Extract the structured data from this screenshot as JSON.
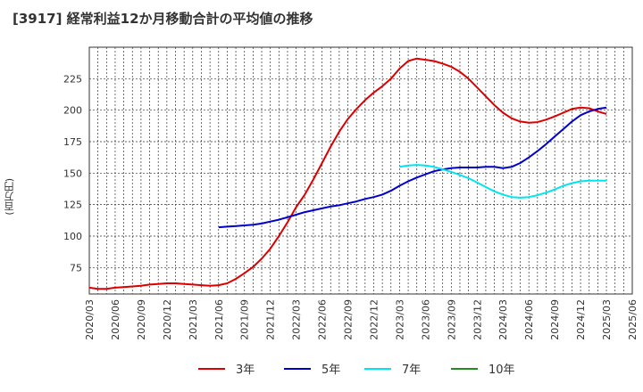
{
  "chart_data": {
    "type": "line",
    "title": "[3917]  経常利益12か月移動合計の平均値の推移",
    "ylabel": "(百万円)",
    "xlabel": "",
    "ylim": [
      54,
      250
    ],
    "yticks": [
      75,
      100,
      125,
      150,
      175,
      200,
      225
    ],
    "x_ticks": [
      "2020/03",
      "2020/06",
      "2020/09",
      "2020/12",
      "2021/03",
      "2021/06",
      "2021/09",
      "2021/12",
      "2022/03",
      "2022/06",
      "2022/09",
      "2022/12",
      "2023/03",
      "2023/06",
      "2023/09",
      "2023/12",
      "2024/03",
      "2024/06",
      "2024/09",
      "2024/12",
      "2025/03",
      "2025/06"
    ],
    "grid": true,
    "legend_position": "bottom",
    "series": [
      {
        "name": "3年",
        "color": "#dd0000",
        "x": [
          "2020/03",
          "2020/04",
          "2020/05",
          "2020/06",
          "2020/07",
          "2020/08",
          "2020/09",
          "2020/10",
          "2020/11",
          "2020/12",
          "2021/01",
          "2021/02",
          "2021/03",
          "2021/04",
          "2021/05",
          "2021/06",
          "2021/07",
          "2021/08",
          "2021/09",
          "2021/10",
          "2021/11",
          "2021/12",
          "2022/01",
          "2022/02",
          "2022/03",
          "2022/04",
          "2022/05",
          "2022/06",
          "2022/07",
          "2022/08",
          "2022/09",
          "2022/10",
          "2022/11",
          "2022/12",
          "2023/01",
          "2023/02",
          "2023/03",
          "2023/04",
          "2023/05",
          "2023/06",
          "2023/07",
          "2023/08",
          "2023/09",
          "2023/10",
          "2023/11",
          "2023/12",
          "2024/01",
          "2024/02",
          "2024/03",
          "2024/04",
          "2024/05",
          "2024/06",
          "2024/07",
          "2024/08",
          "2024/09",
          "2024/10",
          "2024/11",
          "2024/12",
          "2025/01",
          "2025/02",
          "2025/03"
        ],
        "values": [
          59,
          58,
          58,
          59,
          59.5,
          60,
          60.5,
          61.5,
          62,
          62.5,
          62.5,
          62,
          61.5,
          61,
          60.5,
          61,
          62.5,
          66,
          70.5,
          75.5,
          82,
          90,
          100,
          111,
          123,
          133,
          145,
          158,
          171,
          183,
          193,
          201,
          208,
          214,
          219,
          225,
          233,
          239,
          241,
          240,
          239,
          237,
          234.5,
          230.5,
          225,
          218,
          211,
          204,
          198,
          193.5,
          191,
          190,
          190.5,
          192.5,
          195,
          198,
          201,
          202,
          201.5,
          199,
          197
        ]
      },
      {
        "name": "5年",
        "color": "#0000cc",
        "x": [
          "2021/06",
          "2021/07",
          "2021/08",
          "2021/09",
          "2021/10",
          "2021/11",
          "2021/12",
          "2022/01",
          "2022/02",
          "2022/03",
          "2022/04",
          "2022/05",
          "2022/06",
          "2022/07",
          "2022/08",
          "2022/09",
          "2022/10",
          "2022/11",
          "2022/12",
          "2023/01",
          "2023/02",
          "2023/03",
          "2023/04",
          "2023/05",
          "2023/06",
          "2023/07",
          "2023/08",
          "2023/09",
          "2023/10",
          "2023/11",
          "2023/12",
          "2024/01",
          "2024/02",
          "2024/03",
          "2024/04",
          "2024/05",
          "2024/06",
          "2024/07",
          "2024/08",
          "2024/09",
          "2024/10",
          "2024/11",
          "2024/12",
          "2025/01",
          "2025/02",
          "2025/03"
        ],
        "values": [
          107,
          107.5,
          108,
          108.5,
          109,
          110,
          111.5,
          113,
          115,
          117,
          119,
          120.5,
          122,
          123.5,
          124.5,
          126,
          127.5,
          129.5,
          131,
          133,
          136,
          140,
          143.5,
          146.5,
          149,
          151.5,
          153,
          154,
          154.5,
          154.5,
          154.5,
          155,
          155,
          154,
          155,
          158,
          162.5,
          167.5,
          173,
          179,
          185,
          191,
          196,
          199,
          201,
          202
        ]
      },
      {
        "name": "7年",
        "color": "#00e5ee",
        "x": [
          "2023/03",
          "2023/04",
          "2023/05",
          "2023/06",
          "2023/07",
          "2023/08",
          "2023/09",
          "2023/10",
          "2023/11",
          "2023/12",
          "2024/01",
          "2024/02",
          "2024/03",
          "2024/04",
          "2024/05",
          "2024/06",
          "2024/07",
          "2024/08",
          "2024/09",
          "2024/10",
          "2024/11",
          "2024/12",
          "2025/01",
          "2025/02",
          "2025/03"
        ],
        "values": [
          155,
          156,
          156.5,
          156,
          155,
          153,
          151,
          148.5,
          146,
          142.5,
          139,
          135.5,
          133,
          131,
          130.5,
          131,
          132.5,
          134.5,
          137,
          140,
          142,
          143.5,
          144,
          144,
          144
        ]
      },
      {
        "name": "10年",
        "color": "#228b22",
        "x": [],
        "values": []
      }
    ]
  }
}
